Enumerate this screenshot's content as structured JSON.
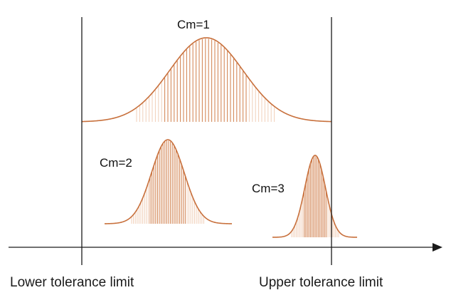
{
  "diagram": {
    "colors": {
      "curve": "#c8703c",
      "hatch_dark": "#d4895a",
      "hatch_light": "#f0cfb8",
      "axis": "#1a1a1a",
      "text": "#111111"
    },
    "distributions": [
      {
        "label": "Cm=1"
      },
      {
        "label": "Cm=2"
      },
      {
        "label": "Cm=3"
      }
    ],
    "limits": {
      "lower_label": "Lower tolerance limit",
      "upper_label": "Upper tolerance limit"
    },
    "axis": {
      "direction": "right-arrow"
    }
  }
}
